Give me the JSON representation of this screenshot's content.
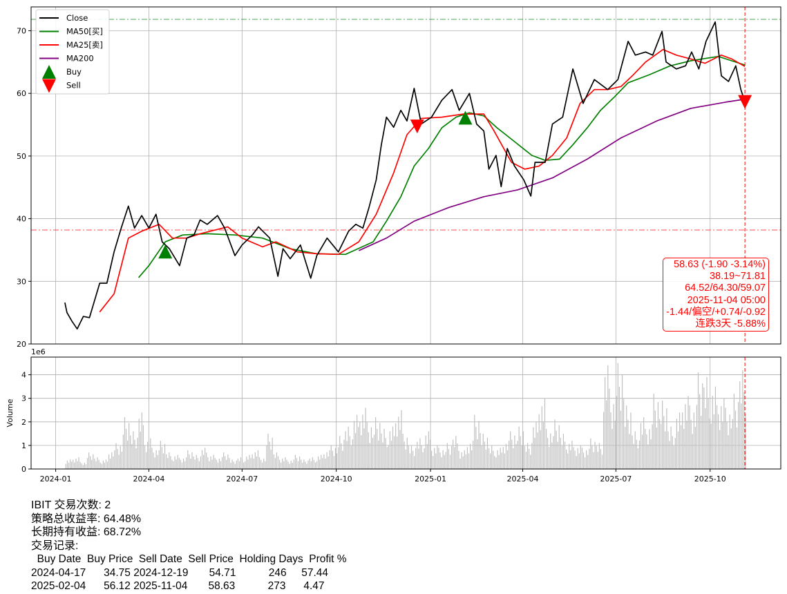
{
  "chart_data": [
    {
      "type": "line",
      "panel": "price",
      "xlim": [
        "2023-12-08",
        "2025-12-09"
      ],
      "ylim": [
        20,
        73.8
      ],
      "grid": true,
      "yticks": [
        20,
        30,
        40,
        50,
        60,
        70
      ],
      "xticks": [
        "2024-01",
        "2024-04",
        "2024-07",
        "2024-10",
        "2025-01",
        "2025-04",
        "2025-07",
        "2025-10"
      ],
      "legend": {
        "placement": "top-left",
        "entries": [
          "Close",
          "MA50[买]",
          "MA25[卖]",
          "MA200",
          "Buy",
          "Sell"
        ]
      },
      "colors": {
        "close": "#000000",
        "ma50": "#008000",
        "ma25": "#ff0000",
        "ma200": "#800080",
        "buy": "#008000",
        "sell": "#ff0000"
      },
      "hlines": [
        {
          "value": 71.81,
          "color": "#008000",
          "style": "dashdot"
        },
        {
          "value": 38.19,
          "color": "#ff0000",
          "style": "dashdot"
        }
      ],
      "vline": {
        "date": "2025-11-04",
        "color": "#ff0000",
        "style": "dashed"
      },
      "series": [
        {
          "name": "Close",
          "key": "close",
          "points": [
            [
              "2024-01-10",
              26.6
            ],
            [
              "2024-01-12",
              25
            ],
            [
              "2024-01-17",
              23.6
            ],
            [
              "2024-01-22",
              22.4
            ],
            [
              "2024-01-28",
              24.4
            ],
            [
              "2024-02-03",
              24.2
            ],
            [
              "2024-02-13",
              29.7
            ],
            [
              "2024-02-20",
              29.7
            ],
            [
              "2024-02-27",
              34.7
            ],
            [
              "2024-03-05",
              38.5
            ],
            [
              "2024-03-12",
              42
            ],
            [
              "2024-03-18",
              38.5
            ],
            [
              "2024-03-25",
              40.5
            ],
            [
              "2024-04-01",
              38.5
            ],
            [
              "2024-04-08",
              40.7
            ],
            [
              "2024-04-14",
              36.3
            ],
            [
              "2024-04-21",
              35.2
            ],
            [
              "2024-05-01",
              32.5
            ],
            [
              "2024-05-08",
              36.9
            ],
            [
              "2024-05-15",
              37.4
            ],
            [
              "2024-05-21",
              39.8
            ],
            [
              "2024-05-28",
              39.1
            ],
            [
              "2024-06-07",
              40.5
            ],
            [
              "2024-06-14",
              38.5
            ],
            [
              "2024-06-24",
              34.1
            ],
            [
              "2024-07-01",
              35.8
            ],
            [
              "2024-07-11",
              37.4
            ],
            [
              "2024-07-17",
              38.7
            ],
            [
              "2024-07-28",
              36.9
            ],
            [
              "2024-08-05",
              30.8
            ],
            [
              "2024-08-10",
              35.2
            ],
            [
              "2024-08-17",
              33.6
            ],
            [
              "2024-08-27",
              35.8
            ],
            [
              "2024-09-06",
              30.5
            ],
            [
              "2024-09-12",
              34.1
            ],
            [
              "2024-09-22",
              36.9
            ],
            [
              "2024-10-03",
              34.7
            ],
            [
              "2024-10-13",
              38
            ],
            [
              "2024-10-20",
              39.1
            ],
            [
              "2024-10-27",
              38.5
            ],
            [
              "2024-11-02",
              41.8
            ],
            [
              "2024-11-09",
              46.2
            ],
            [
              "2024-11-14",
              51.8
            ],
            [
              "2024-11-19",
              56.2
            ],
            [
              "2024-11-26",
              54.6
            ],
            [
              "2024-12-03",
              57.3
            ],
            [
              "2024-12-09",
              55.6
            ],
            [
              "2024-12-16",
              60.8
            ],
            [
              "2024-12-23",
              55.1
            ],
            [
              "2025-01-02",
              56.2
            ],
            [
              "2025-01-12",
              58.9
            ],
            [
              "2025-01-22",
              60.6
            ],
            [
              "2025-01-29",
              57.3
            ],
            [
              "2025-02-08",
              60
            ],
            [
              "2025-02-15",
              55.1
            ],
            [
              "2025-02-22",
              54
            ],
            [
              "2025-02-27",
              47.9
            ],
            [
              "2025-03-06",
              50.1
            ],
            [
              "2025-03-11",
              45.1
            ],
            [
              "2025-03-17",
              51.2
            ],
            [
              "2025-03-24",
              48.4
            ],
            [
              "2025-04-02",
              46.2
            ],
            [
              "2025-04-09",
              43.6
            ],
            [
              "2025-04-13",
              49
            ],
            [
              "2025-04-23",
              49
            ],
            [
              "2025-04-30",
              55.1
            ],
            [
              "2025-05-10",
              56.2
            ],
            [
              "2025-05-20",
              63.9
            ],
            [
              "2025-05-30",
              58.4
            ],
            [
              "2025-06-10",
              62.2
            ],
            [
              "2025-06-23",
              60.6
            ],
            [
              "2025-07-03",
              62.2
            ],
            [
              "2025-07-13",
              68.3
            ],
            [
              "2025-07-20",
              66.1
            ],
            [
              "2025-07-30",
              66.6
            ],
            [
              "2025-08-06",
              66.1
            ],
            [
              "2025-08-15",
              69.9
            ],
            [
              "2025-08-19",
              65
            ],
            [
              "2025-08-29",
              63.9
            ],
            [
              "2025-09-07",
              64.4
            ],
            [
              "2025-09-13",
              66.6
            ],
            [
              "2025-09-20",
              63.9
            ],
            [
              "2025-09-27",
              68.3
            ],
            [
              "2025-10-06",
              71.4
            ],
            [
              "2025-10-12",
              62.8
            ],
            [
              "2025-10-19",
              61.9
            ],
            [
              "2025-10-26",
              64.4
            ],
            [
              "2025-10-31",
              60.6
            ],
            [
              "2025-11-04",
              58.63
            ]
          ]
        },
        {
          "name": "MA50[买]",
          "key": "ma50",
          "points": [
            [
              "2024-03-22",
              30.6
            ],
            [
              "2024-04-01",
              32.5
            ],
            [
              "2024-04-17",
              36.3
            ],
            [
              "2024-05-04",
              37.4
            ],
            [
              "2024-05-28",
              37.6
            ],
            [
              "2024-06-24",
              37.4
            ],
            [
              "2024-07-21",
              36.9
            ],
            [
              "2024-08-17",
              35.2
            ],
            [
              "2024-09-12",
              34.4
            ],
            [
              "2024-10-10",
              34.3
            ],
            [
              "2024-11-06",
              36.3
            ],
            [
              "2024-11-19",
              39.6
            ],
            [
              "2024-12-03",
              43.5
            ],
            [
              "2024-12-16",
              48.4
            ],
            [
              "2024-12-30",
              51.2
            ],
            [
              "2025-01-12",
              54.5
            ],
            [
              "2025-01-26",
              56.2
            ],
            [
              "2025-02-08",
              56.9
            ],
            [
              "2025-02-22",
              56.4
            ],
            [
              "2025-03-07",
              54.5
            ],
            [
              "2025-03-24",
              52.3
            ],
            [
              "2025-04-10",
              50.1
            ],
            [
              "2025-04-23",
              49.3
            ],
            [
              "2025-05-07",
              49.5
            ],
            [
              "2025-05-20",
              51.8
            ],
            [
              "2025-06-03",
              54.5
            ],
            [
              "2025-06-16",
              57.3
            ],
            [
              "2025-06-30",
              59.5
            ],
            [
              "2025-07-13",
              61.7
            ],
            [
              "2025-08-03",
              63
            ],
            [
              "2025-08-23",
              64.4
            ],
            [
              "2025-09-12",
              65.2
            ],
            [
              "2025-10-09",
              65.9
            ],
            [
              "2025-10-22",
              65.2
            ],
            [
              "2025-11-04",
              64.52
            ]
          ]
        },
        {
          "name": "MA25[卖]",
          "key": "ma25",
          "points": [
            [
              "2024-02-13",
              25.1
            ],
            [
              "2024-02-27",
              28
            ],
            [
              "2024-03-12",
              36.9
            ],
            [
              "2024-03-25",
              38
            ],
            [
              "2024-04-11",
              39.1
            ],
            [
              "2024-04-24",
              36.9
            ],
            [
              "2024-05-08",
              36.9
            ],
            [
              "2024-05-21",
              37.6
            ],
            [
              "2024-06-17",
              38.7
            ],
            [
              "2024-07-01",
              36.9
            ],
            [
              "2024-07-21",
              35.5
            ],
            [
              "2024-08-03",
              36.3
            ],
            [
              "2024-08-24",
              34.7
            ],
            [
              "2024-09-12",
              34.4
            ],
            [
              "2024-10-03",
              34.3
            ],
            [
              "2024-10-23",
              36.3
            ],
            [
              "2024-11-09",
              40.7
            ],
            [
              "2024-11-26",
              47.3
            ],
            [
              "2024-12-09",
              53.4
            ],
            [
              "2024-12-23",
              56
            ],
            [
              "2025-01-12",
              56.2
            ],
            [
              "2025-02-02",
              56.7
            ],
            [
              "2025-02-22",
              56.7
            ],
            [
              "2025-03-04",
              54
            ],
            [
              "2025-03-21",
              49
            ],
            [
              "2025-04-03",
              47.9
            ],
            [
              "2025-04-17",
              48.4
            ],
            [
              "2025-04-30",
              50.1
            ],
            [
              "2025-05-14",
              52.9
            ],
            [
              "2025-05-27",
              58.4
            ],
            [
              "2025-06-10",
              60.6
            ],
            [
              "2025-06-23",
              60.6
            ],
            [
              "2025-07-06",
              61.1
            ],
            [
              "2025-07-17",
              62.8
            ],
            [
              "2025-07-30",
              65
            ],
            [
              "2025-08-16",
              67
            ],
            [
              "2025-08-29",
              66.1
            ],
            [
              "2025-09-12",
              65.5
            ],
            [
              "2025-09-26",
              64.8
            ],
            [
              "2025-10-12",
              66.1
            ],
            [
              "2025-10-22",
              65.5
            ],
            [
              "2025-11-04",
              64.3
            ]
          ]
        },
        {
          "name": "MA200",
          "key": "ma200",
          "points": [
            [
              "2024-10-23",
              34.9
            ],
            [
              "2024-11-19",
              36.9
            ],
            [
              "2024-12-16",
              39.6
            ],
            [
              "2025-01-19",
              41.8
            ],
            [
              "2025-02-22",
              43.5
            ],
            [
              "2025-03-27",
              44.6
            ],
            [
              "2025-04-30",
              46.5
            ],
            [
              "2025-06-03",
              49.5
            ],
            [
              "2025-07-06",
              52.9
            ],
            [
              "2025-08-10",
              55.6
            ],
            [
              "2025-09-12",
              57.6
            ],
            [
              "2025-10-16",
              58.6
            ],
            [
              "2025-11-04",
              59.07
            ]
          ]
        }
      ],
      "signals": [
        {
          "type": "Buy",
          "date": "2024-04-17",
          "price": 34.75
        },
        {
          "type": "Sell",
          "date": "2024-12-19",
          "price": 54.71
        },
        {
          "type": "Buy",
          "date": "2025-02-04",
          "price": 56.12
        },
        {
          "type": "Sell",
          "date": "2025-11-04",
          "price": 58.63
        }
      ]
    },
    {
      "type": "bar",
      "panel": "volume",
      "ylabel": "Volume",
      "scale_label": "1e6",
      "ylim": [
        0,
        4.75
      ],
      "yticks": [
        0,
        1,
        2,
        3,
        4
      ],
      "color": "#c0c0c0",
      "grid": true,
      "start": "2024-01-11",
      "step_days": 7,
      "values": [
        0.4,
        0.5,
        0.3,
        0.7,
        0.5,
        0.4,
        0.8,
        1.1,
        2.2,
        1.6,
        2.4,
        1.3,
        0.9,
        1.2,
        0.7,
        0.6,
        0.5,
        0.8,
        0.6,
        0.9,
        0.6,
        0.5,
        0.7,
        0.4,
        0.5,
        0.6,
        0.8,
        0.5,
        1.5,
        0.7,
        0.5,
        0.4,
        0.6,
        0.4,
        0.5,
        0.6,
        0.8,
        1.0,
        1.4,
        1.8,
        2.3,
        2.6,
        2.0,
        2.2,
        1.7,
        1.8,
        2.5,
        1.5,
        1.0,
        1.3,
        1.6,
        1.0,
        0.9,
        1.1,
        1.4,
        0.8,
        1.2,
        2.3,
        1.5,
        1.0,
        0.9,
        1.2,
        1.6,
        1.8,
        1.1,
        2.0,
        3.0,
        1.7,
        2.1,
        1.5,
        1.2,
        1.0,
        0.9,
        1.3,
        1.1,
        4.4,
        3.1,
        4.5,
        2.7,
        1.6,
        2.2,
        1.9,
        3.2,
        2.9,
        1.8,
        2.4,
        3.1,
        2.7,
        4.1,
        3.9,
        3.5,
        3.0,
        2.6,
        3.2,
        4.2
      ]
    }
  ],
  "info_box": [
    "58.63 (-1.90 -3.14%)",
    "38.19~71.81",
    "64.52/64.30/59.07",
    "2025-11-04 05:00",
    "-1.44/偏空/+0.74/-0.92",
    "连跌3天 -5.88%"
  ],
  "summary": {
    "line1": "IBIT 交易次数: 2",
    "line2": "策略总收益率: 64.48%",
    "line3": "长期持有收益: 68.72%",
    "line4": "交易记录:",
    "table_header": "  Buy Date  Buy Price  Sell Date  Sell Price  Holding Days  Profit %",
    "rows": [
      "2024-04-17      34.75 2024-12-19       54.71           246     57.44",
      "2025-02-04      56.12 2025-11-04       58.63           273      4.47"
    ]
  }
}
